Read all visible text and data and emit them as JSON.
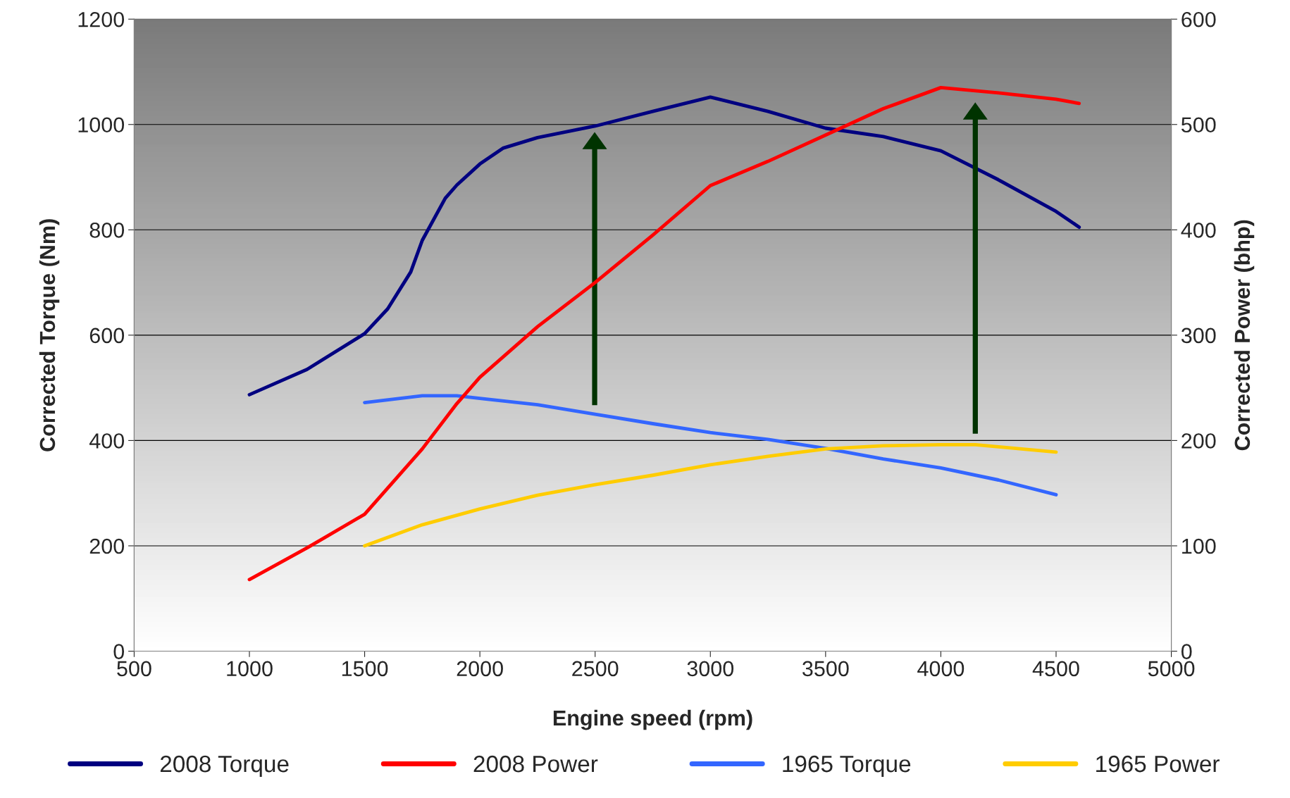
{
  "chart_data": {
    "type": "line",
    "xlabel": "Engine speed (rpm)",
    "ylabel": "Corrected Torque (Nm)",
    "y2label": "Corrected Power (bhp)",
    "series": [
      {
        "name": "2008 Torque",
        "color": "#000080",
        "x": [
          1000,
          1250,
          1500,
          1600,
          1700,
          1750,
          1850,
          1900,
          2000,
          2100,
          2250,
          2500,
          2750,
          3000,
          3250,
          3500,
          3750,
          4000,
          4250,
          4500,
          4600
        ],
        "values": [
          487,
          535,
          603,
          650,
          720,
          780,
          860,
          885,
          925,
          955,
          975,
          997,
          1025,
          1052,
          1025,
          993,
          977,
          950,
          895,
          835,
          805
        ]
      },
      {
        "name": "2008 Power",
        "color": "#ff0000",
        "axis": "y2",
        "x": [
          1000,
          1250,
          1500,
          1750,
          1900,
          2000,
          2250,
          2500,
          2750,
          3000,
          3250,
          3500,
          3750,
          4000,
          4250,
          4500,
          4600
        ],
        "values": [
          68,
          98,
          130,
          192,
          235,
          260,
          308,
          350,
          395,
          442,
          465,
          490,
          515,
          535,
          530,
          524,
          520
        ]
      },
      {
        "name": "1965 Torque",
        "color": "#3366ff",
        "x": [
          1500,
          1750,
          1900,
          2000,
          2250,
          2500,
          2750,
          3000,
          3250,
          3500,
          3750,
          4000,
          4250,
          4500
        ],
        "values": [
          472,
          485,
          485,
          480,
          468,
          450,
          432,
          415,
          402,
          385,
          365,
          348,
          325,
          297
        ]
      },
      {
        "name": "1965 Power",
        "color": "#ffcc00",
        "axis": "y2",
        "x": [
          1500,
          1750,
          2000,
          2250,
          2500,
          2750,
          3000,
          3250,
          3500,
          3750,
          4000,
          4150,
          4500
        ],
        "values": [
          100,
          120,
          135,
          148,
          158,
          167,
          177,
          185,
          192,
          195,
          196,
          196,
          189
        ]
      }
    ],
    "xlim": [
      500,
      5000
    ],
    "xticks": [
      500,
      1000,
      1500,
      2000,
      2500,
      3000,
      3500,
      4000,
      4500,
      5000
    ],
    "ylim": [
      0,
      1200
    ],
    "yticks": [
      0,
      200,
      400,
      600,
      800,
      1000,
      1200
    ],
    "y2lim": [
      0,
      600
    ],
    "y2ticks": [
      0,
      100,
      200,
      300,
      400,
      500,
      600
    ],
    "grid": "y",
    "legend": "bottom",
    "marker": "none",
    "line_style": "solid"
  }
}
